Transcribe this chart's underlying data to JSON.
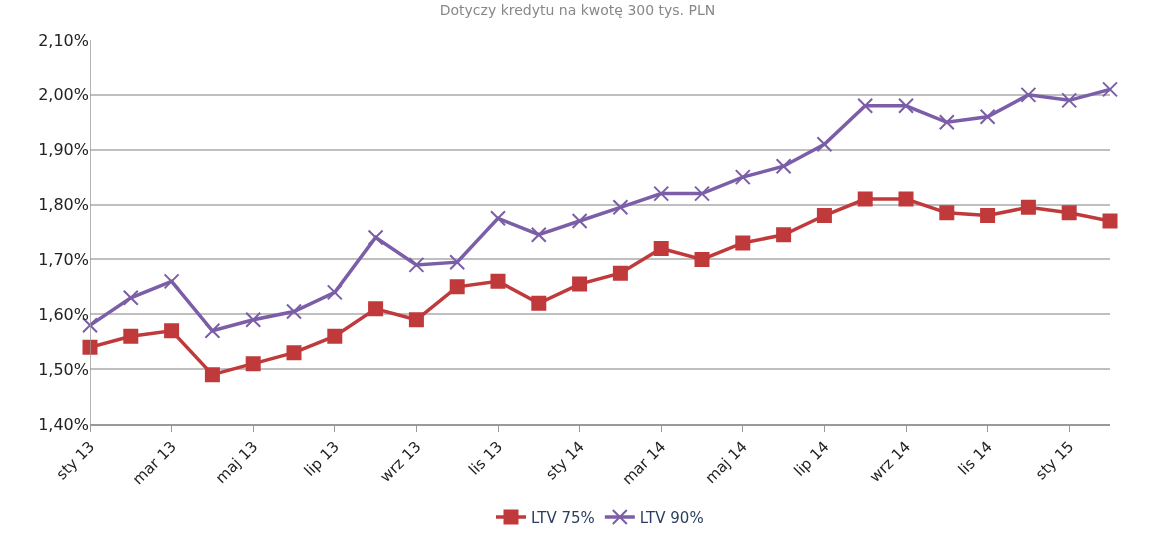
{
  "chart_data": {
    "type": "line",
    "subtitle": "Dotyczy kredytu na kwotę 300 tys. PLN",
    "categories": [
      "sty 13",
      null,
      "mar 13",
      null,
      "maj 13",
      null,
      "lip 13",
      null,
      "wrz 13",
      null,
      "lis 13",
      null,
      "sty 14",
      null,
      "mar 14",
      null,
      "maj 14",
      null,
      "lip 14",
      null,
      "wrz 14",
      null,
      "lis 14",
      null,
      "sty 15",
      null
    ],
    "series": [
      {
        "name": "LTV 75%",
        "color": "#c0393b",
        "marker": "square",
        "values": [
          1.54,
          1.56,
          1.57,
          1.49,
          1.51,
          1.53,
          1.56,
          1.61,
          1.59,
          1.65,
          1.66,
          1.62,
          1.655,
          1.675,
          1.72,
          1.7,
          1.73,
          1.745,
          1.78,
          1.81,
          1.81,
          1.785,
          1.78,
          1.795,
          1.785,
          1.77
        ]
      },
      {
        "name": "LTV 90%",
        "color": "#7b5ea7",
        "marker": "cross",
        "values": [
          1.58,
          1.63,
          1.66,
          1.57,
          1.59,
          1.605,
          1.64,
          1.74,
          1.69,
          1.695,
          1.775,
          1.745,
          1.77,
          1.795,
          1.82,
          1.82,
          1.85,
          1.87,
          1.91,
          1.98,
          1.98,
          1.95,
          1.96,
          2.0,
          1.99,
          2.01
        ]
      }
    ],
    "ylim": [
      1.4,
      2.1
    ],
    "yticks": [
      {
        "value": 1.4,
        "label": "1,40%"
      },
      {
        "value": 1.5,
        "label": "1,50%"
      },
      {
        "value": 1.6,
        "label": "1,60%"
      },
      {
        "value": 1.7,
        "label": "1,70%"
      },
      {
        "value": 1.8,
        "label": "1,80%"
      },
      {
        "value": 1.9,
        "label": "1,90%"
      },
      {
        "value": 2.0,
        "label": "2,00%"
      },
      {
        "value": 2.1,
        "label": "2,10%"
      }
    ],
    "grid": "y",
    "legend": "bottom",
    "line_style": "solid"
  }
}
